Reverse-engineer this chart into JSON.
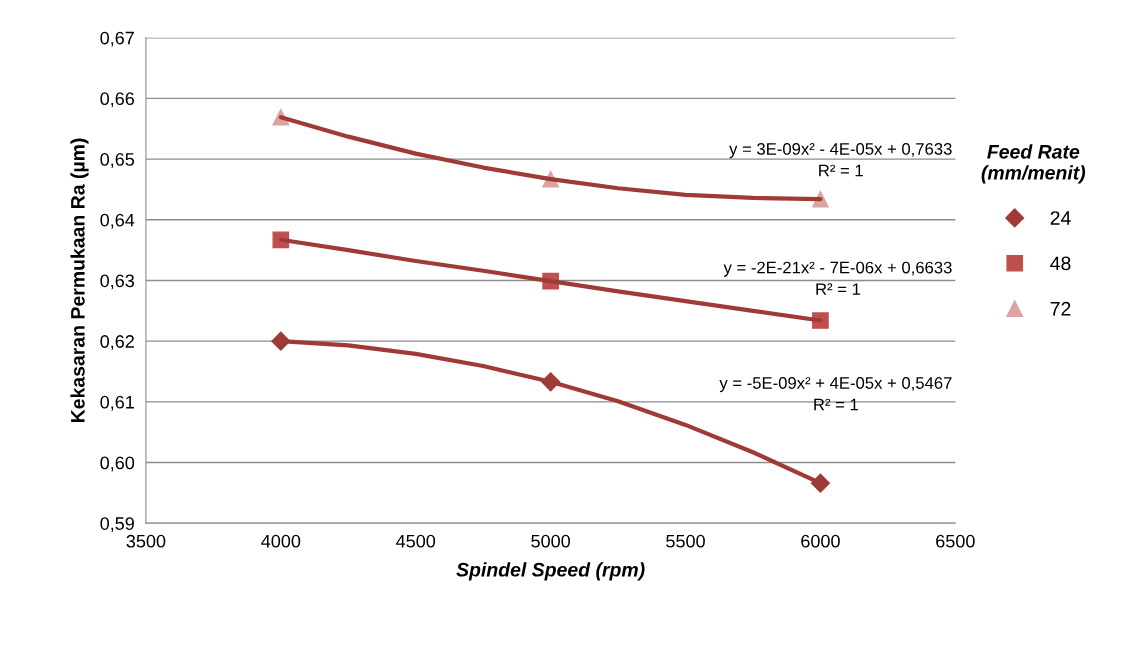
{
  "chart_data": {
    "type": "scatter",
    "xlabel": "Spindel Speed (rpm)",
    "ylabel": "Kekasaran Permukaan Ra (µm)",
    "legend_title": "Feed Rate\n(mm/menit)",
    "x": [
      4000,
      5000,
      6000
    ],
    "series": [
      {
        "name": "24",
        "color": "#9e3b37",
        "marker": "diamond",
        "values": [
          0.62,
          0.6133,
          0.5966
        ]
      },
      {
        "name": "48",
        "color": "#c0504d",
        "marker": "square",
        "values": [
          0.6367,
          0.6299,
          0.6234
        ]
      },
      {
        "name": "72",
        "color": "#dba3a1",
        "marker": "triangle",
        "values": [
          0.6569,
          0.6467,
          0.6434
        ]
      },
      {
        "type": "line",
        "color": "#9e3b37",
        "x": [
          4000,
          4250,
          4500,
          4750,
          5000,
          5250,
          5500,
          5750,
          6000
        ],
        "values": [
          0.62,
          0.6193,
          0.6179,
          0.6159,
          0.6133,
          0.6101,
          0.6062,
          0.6017,
          0.5966
        ]
      },
      {
        "type": "line",
        "color": "#9e3b37",
        "x": [
          4000,
          4250,
          4500,
          4750,
          5000,
          5250,
          5500,
          5750,
          6000
        ],
        "values": [
          0.6367,
          0.635,
          0.6332,
          0.6316,
          0.6299,
          0.6282,
          0.6266,
          0.625,
          0.6234
        ]
      },
      {
        "type": "line",
        "color": "#9e3b37",
        "x": [
          4000,
          4250,
          4500,
          4750,
          5000,
          5250,
          5500,
          5750,
          6000
        ],
        "values": [
          0.6569,
          0.6537,
          0.6509,
          0.6486,
          0.6467,
          0.6452,
          0.6441,
          0.6436,
          0.6434
        ]
      }
    ],
    "annotations": [
      "y = -5E-09x² + 4E-05x + 0,5467\nR² = 1",
      "y = -2E-21x² - 7E-06x + 0,6633\nR² = 1",
      "y = 3E-09x² - 4E-05x + 0,7633\nR² = 1"
    ],
    "xlim": [
      3500,
      6500
    ],
    "xticks": [
      3500,
      4000,
      4500,
      5000,
      5500,
      6000,
      6500
    ],
    "ylim": [
      0.59,
      0.67
    ],
    "yticks": [
      {
        "value": 0.59,
        "label": "0,59"
      },
      {
        "value": 0.6,
        "label": "0,60"
      },
      {
        "value": 0.61,
        "label": "0,61"
      },
      {
        "value": 0.62,
        "label": "0,62"
      },
      {
        "value": 0.63,
        "label": "0,63"
      },
      {
        "value": 0.64,
        "label": "0,64"
      },
      {
        "value": 0.65,
        "label": "0,65"
      },
      {
        "value": 0.66,
        "label": "0,66"
      },
      {
        "value": 0.67,
        "label": "0,67"
      }
    ],
    "grid": "y",
    "legend": "right"
  }
}
